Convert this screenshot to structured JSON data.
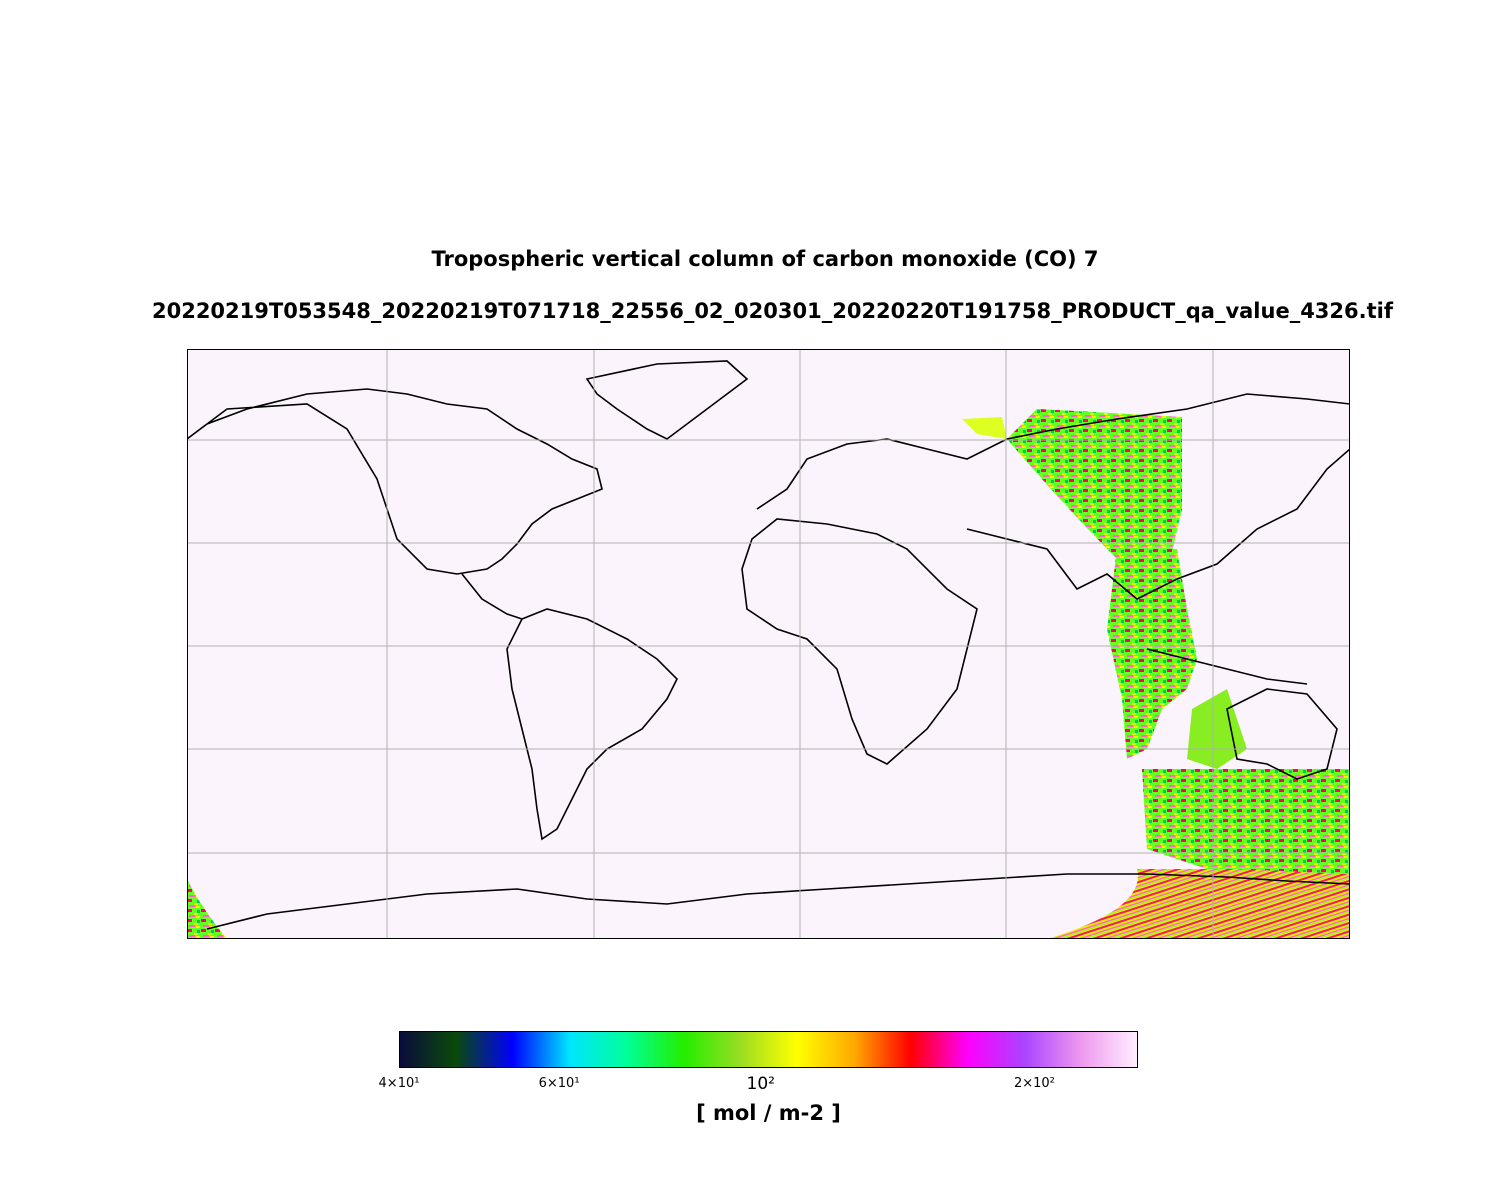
{
  "title": "Tropospheric vertical column of carbon monoxide (CO) 7",
  "subtitle": "20220219T053548_20220219T071718_22556_02_020301_20220220T191758_PRODUCT_qa_value_4326.tif",
  "colorbar": {
    "label": "[ mol / m-2 ]",
    "scale": "log",
    "range": [
      40,
      260
    ],
    "ticks": [
      {
        "value": 40,
        "label": "4×10¹"
      },
      {
        "value": 60,
        "label": "6×10¹"
      },
      {
        "value": 100,
        "label": "10²"
      },
      {
        "value": 200,
        "label": "2×10²"
      }
    ],
    "colors": [
      "#0a0a3c",
      "#0a4a0a",
      "#0000ff",
      "#00e5ff",
      "#00ff99",
      "#22ee00",
      "#99dd22",
      "#ffff00",
      "#ffaa00",
      "#ff0000",
      "#ff00ff",
      "#aa44ff",
      "#ee99ee",
      "#fff0ff"
    ]
  },
  "map": {
    "projection": "plate-carree",
    "extent": {
      "lon": [
        -180,
        180
      ],
      "lat": [
        -90,
        90
      ]
    },
    "gridlines": true,
    "background_color": "#fcf4fc",
    "coastline_color": "#000000"
  },
  "chart_data": {
    "type": "heatmap",
    "title": "Tropospheric vertical column of carbon monoxide (CO) 7",
    "subtitle": "20220219T053548_20220219T071718_22556_02_020301_20220220T191758_PRODUCT_qa_value_4326.tif",
    "colorbar_label": "[ mol / m-2 ]",
    "value_range": [
      40,
      260
    ],
    "scale": "log",
    "data_swath_lon_range": [
      70,
      180
    ],
    "grid": true
  }
}
